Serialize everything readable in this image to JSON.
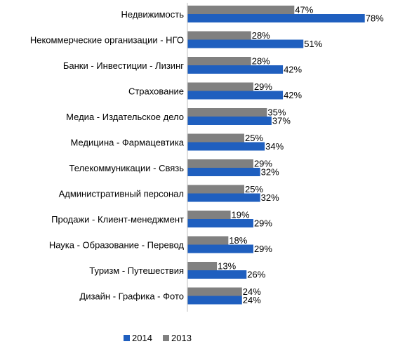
{
  "chart_data": {
    "type": "bar",
    "orientation": "horizontal",
    "categories": [
      "Недвижимость",
      "Некоммерческие организации - НГО",
      "Банки - Инвестиции - Лизинг",
      "Страхование",
      "Медиа - Издательское дело",
      "Медицина - Фармацевтика",
      "Телекоммуникации - Связь",
      "Административный персонал",
      "Продажи - Клиент-менеджмент",
      "Наука - Образование - Перевод",
      "Туризм - Путешествия",
      "Дизайн - Графика - Фото"
    ],
    "series": [
      {
        "name": "2014",
        "color": "#1f5fbf",
        "values": [
          78,
          51,
          42,
          42,
          37,
          34,
          32,
          32,
          29,
          29,
          26,
          24
        ]
      },
      {
        "name": "2013",
        "color": "#808080",
        "values": [
          47,
          28,
          28,
          29,
          35,
          25,
          29,
          25,
          19,
          18,
          13,
          24
        ]
      }
    ],
    "value_suffix": "%",
    "xlim": [
      0,
      80
    ],
    "legend_position": "bottom",
    "grid": false
  }
}
